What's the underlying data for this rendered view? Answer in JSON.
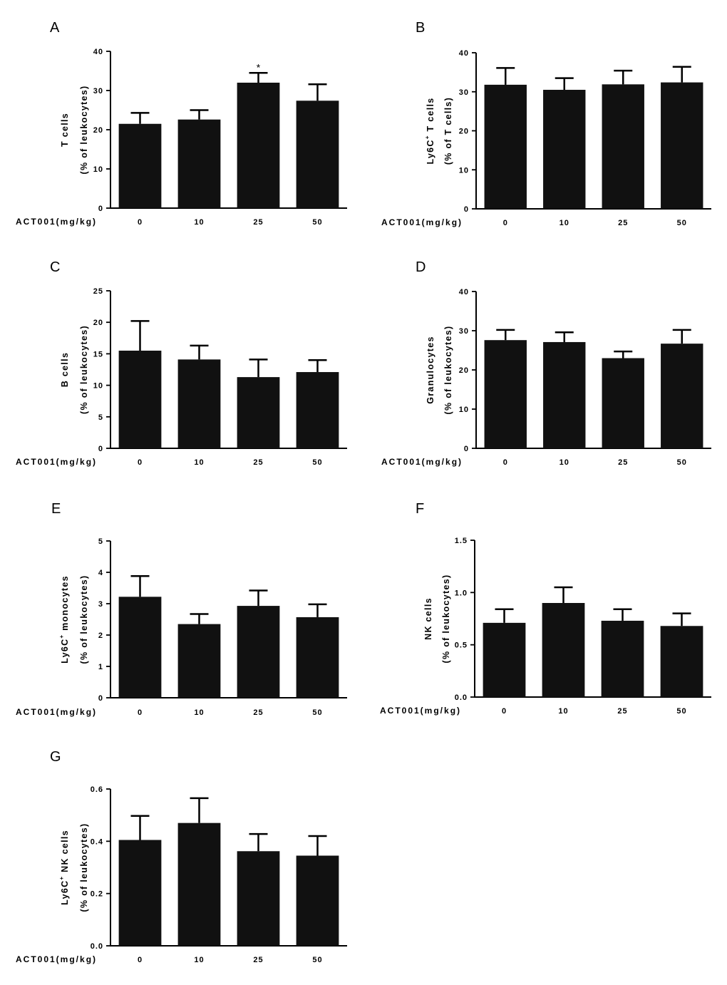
{
  "figure": {
    "x_axis_label": "ACT001(mg/kg)",
    "bar_color": "#111111",
    "axis_color": "#000000"
  },
  "chart_data": [
    {
      "panel": "A",
      "type": "bar",
      "ylabel_line1": "T cells",
      "ylabel_line1_sup": "",
      "ylabel_line1_tail": "",
      "ylabel_line2": "(% of leukocytes)",
      "xlabel": "ACT001(mg/kg)",
      "categories": [
        "0",
        "10",
        "25",
        "50"
      ],
      "values": [
        21.5,
        22.6,
        32.0,
        27.4
      ],
      "errors": [
        2.8,
        2.4,
        2.5,
        4.2
      ],
      "ylim": [
        0,
        40
      ],
      "yticks": [
        "0",
        "10",
        "20",
        "30",
        "40"
      ],
      "annotations": [
        {
          "category": "25",
          "text": "*"
        }
      ]
    },
    {
      "panel": "B",
      "type": "bar",
      "ylabel_line1": "Ly6C",
      "ylabel_line1_sup": "+",
      "ylabel_line1_tail": " T cells",
      "ylabel_line2": "(% of T cells)",
      "xlabel": "ACT001(mg/kg)",
      "categories": [
        "0",
        "10",
        "25",
        "50"
      ],
      "values": [
        31.8,
        30.5,
        31.9,
        32.4
      ],
      "errors": [
        4.3,
        3.0,
        3.5,
        4.0
      ],
      "ylim": [
        0,
        40
      ],
      "yticks": [
        "0",
        "10",
        "20",
        "30",
        "40"
      ],
      "annotations": []
    },
    {
      "panel": "C",
      "type": "bar",
      "ylabel_line1": "B cells",
      "ylabel_line1_sup": "",
      "ylabel_line1_tail": "",
      "ylabel_line2": "(% of leukocytes)",
      "xlabel": "ACT001(mg/kg)",
      "categories": [
        "0",
        "10",
        "25",
        "50"
      ],
      "values": [
        15.5,
        14.1,
        11.3,
        12.1
      ],
      "errors": [
        4.7,
        2.2,
        2.8,
        1.9
      ],
      "ylim": [
        0,
        25
      ],
      "yticks": [
        "0",
        "5",
        "10",
        "15",
        "20",
        "25"
      ],
      "annotations": []
    },
    {
      "panel": "D",
      "type": "bar",
      "ylabel_line1": "Granulocytes",
      "ylabel_line1_sup": "",
      "ylabel_line1_tail": "",
      "ylabel_line2": "(% of leukocytes)",
      "xlabel": "ACT001(mg/kg)",
      "categories": [
        "0",
        "10",
        "25",
        "50"
      ],
      "values": [
        27.6,
        27.1,
        23.0,
        26.7
      ],
      "errors": [
        2.6,
        2.5,
        1.7,
        3.5
      ],
      "ylim": [
        0,
        40
      ],
      "yticks": [
        "0",
        "10",
        "20",
        "30",
        "40"
      ],
      "annotations": []
    },
    {
      "panel": "E",
      "type": "bar",
      "ylabel_line1": "Ly6C",
      "ylabel_line1_sup": "+",
      "ylabel_line1_tail": " monocytes",
      "ylabel_line2": "(% of leukocytes)",
      "xlabel": "ACT001(mg/kg)",
      "categories": [
        "0",
        "10",
        "25",
        "50"
      ],
      "values": [
        3.22,
        2.35,
        2.93,
        2.57
      ],
      "errors": [
        0.66,
        0.32,
        0.49,
        0.41
      ],
      "ylim": [
        0,
        5
      ],
      "yticks": [
        "0",
        "1",
        "2",
        "3",
        "4",
        "5"
      ],
      "annotations": []
    },
    {
      "panel": "F",
      "type": "bar",
      "ylabel_line1": "NK cells",
      "ylabel_line1_sup": "",
      "ylabel_line1_tail": "",
      "ylabel_line2": "(% of leukocytes)",
      "xlabel": "ACT001(mg/kg)",
      "categories": [
        "0",
        "10",
        "25",
        "50"
      ],
      "values": [
        0.71,
        0.9,
        0.73,
        0.68
      ],
      "errors": [
        0.13,
        0.15,
        0.11,
        0.12
      ],
      "ylim": [
        0,
        1.5
      ],
      "yticks": [
        "0.0",
        "0.5",
        "1.0",
        "1.5"
      ],
      "annotations": []
    },
    {
      "panel": "G",
      "type": "bar",
      "ylabel_line1": "Ly6C",
      "ylabel_line1_sup": "+",
      "ylabel_line1_tail": " NK cells",
      "ylabel_line2": "(% of leukocytes)",
      "xlabel": "ACT001(mg/kg)",
      "categories": [
        "0",
        "10",
        "25",
        "50"
      ],
      "values": [
        0.405,
        0.47,
        0.362,
        0.345
      ],
      "errors": [
        0.092,
        0.095,
        0.066,
        0.075
      ],
      "ylim": [
        0,
        0.6
      ],
      "yticks": [
        "0.0",
        "0.2",
        "0.4",
        "0.6"
      ],
      "annotations": []
    }
  ]
}
